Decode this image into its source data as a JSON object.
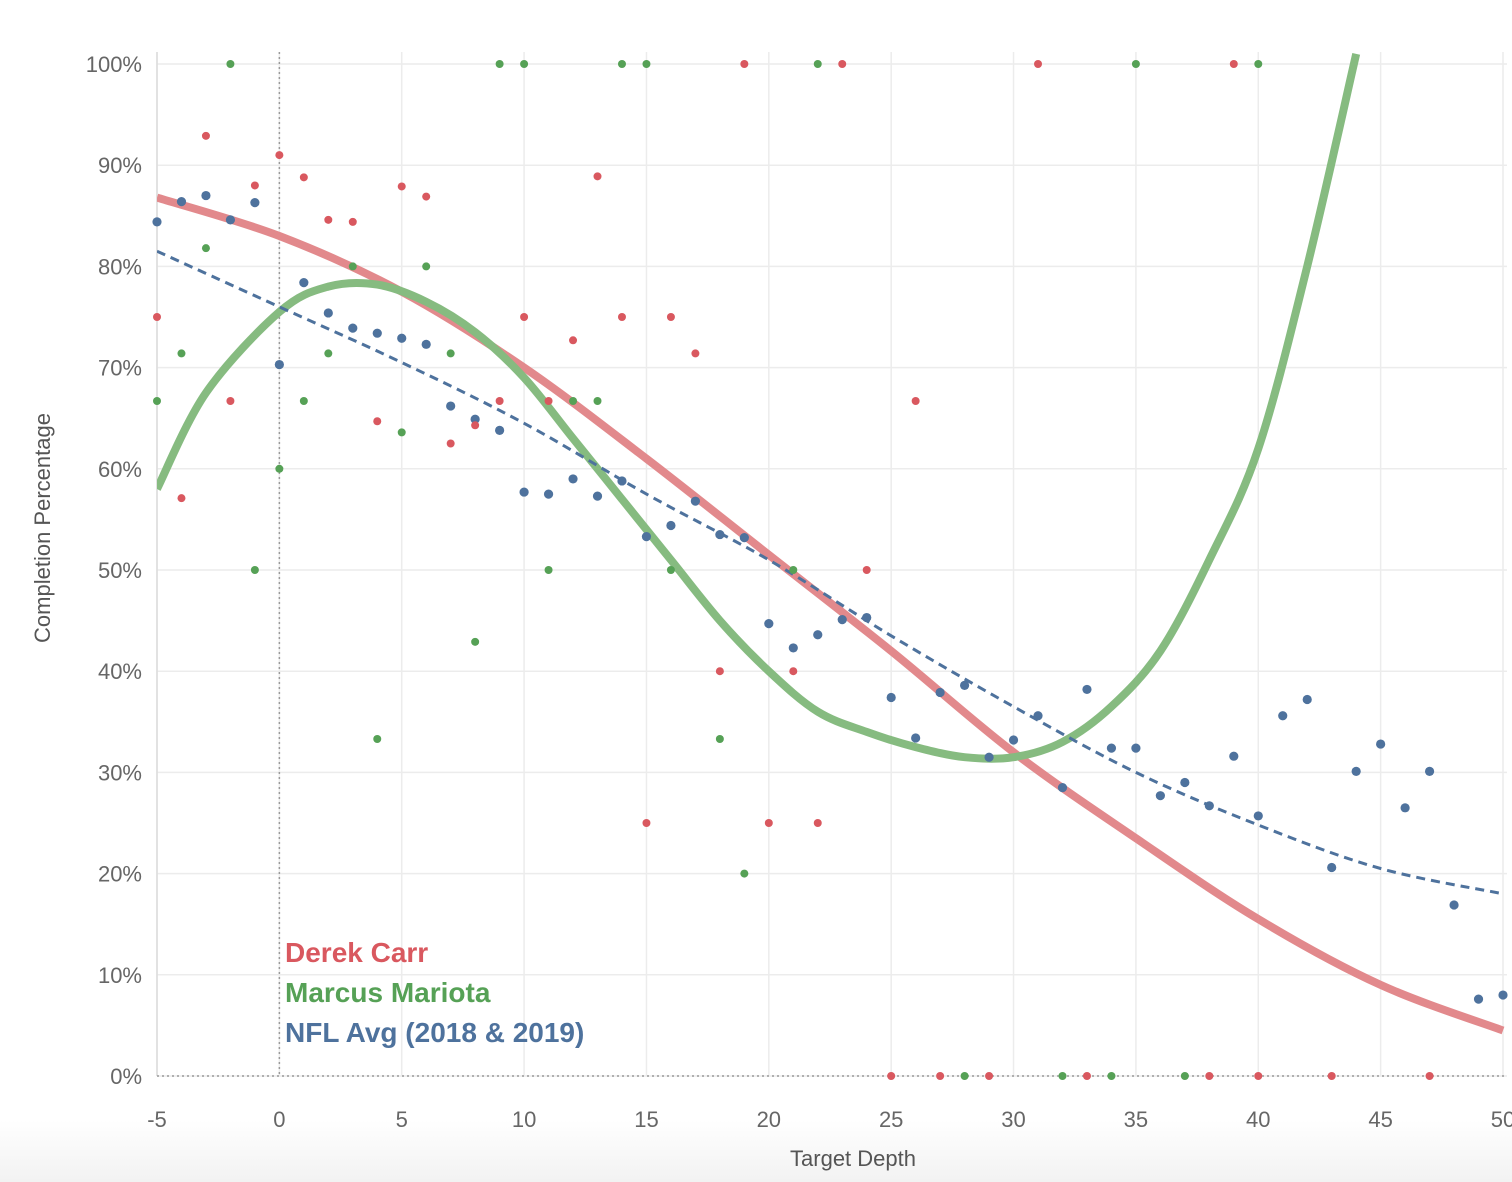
{
  "chart_data": {
    "type": "scatter",
    "xlabel": "Target Depth",
    "ylabel": "Completion Percentage",
    "xlim": [
      -5,
      50
    ],
    "ylim": [
      0,
      100
    ],
    "x_ticks": [
      "-5",
      "0",
      "5",
      "10",
      "15",
      "20",
      "25",
      "30",
      "35",
      "40",
      "45",
      "50"
    ],
    "y_ticks": [
      "0%",
      "10%",
      "20%",
      "30%",
      "40%",
      "50%",
      "60%",
      "70%",
      "80%",
      "90%",
      "100%"
    ],
    "grid": true,
    "reference_line_x": 0,
    "legend_placement": "bottom-left",
    "legend": [
      "Derek Carr",
      "Marcus Mariota",
      "NFL Avg (2018 & 2019)"
    ],
    "series": [
      {
        "name": "Derek Carr",
        "color": "#d9585f",
        "trend_color": "#e2898c",
        "trend": "polynomial",
        "trend_style": "solid-thick",
        "trend_points": [
          [
            -5,
            86.8
          ],
          [
            0,
            83
          ],
          [
            5,
            77.5
          ],
          [
            10,
            70
          ],
          [
            15,
            61
          ],
          [
            20,
            51.5
          ],
          [
            25,
            42
          ],
          [
            30,
            32
          ],
          [
            35,
            23.5
          ],
          [
            40,
            15.5
          ],
          [
            45,
            9
          ],
          [
            50,
            4.5
          ]
        ],
        "points": [
          [
            -5,
            75
          ],
          [
            -4,
            57.1
          ],
          [
            -3,
            92.9
          ],
          [
            -2,
            66.7
          ],
          [
            -1,
            88
          ],
          [
            0,
            91
          ],
          [
            1,
            88.8
          ],
          [
            2,
            84.6
          ],
          [
            3,
            84.4
          ],
          [
            4,
            64.7
          ],
          [
            5,
            87.9
          ],
          [
            6,
            86.9
          ],
          [
            7,
            62.5
          ],
          [
            8,
            64.3
          ],
          [
            9,
            66.7
          ],
          [
            10,
            75
          ],
          [
            11,
            66.7
          ],
          [
            12,
            72.7
          ],
          [
            13,
            88.9
          ],
          [
            14,
            75
          ],
          [
            15,
            25
          ],
          [
            16,
            75
          ],
          [
            17,
            71.4
          ],
          [
            18,
            40
          ],
          [
            19,
            100
          ],
          [
            20,
            25
          ],
          [
            21,
            40
          ],
          [
            22,
            25
          ],
          [
            23,
            100
          ],
          [
            24,
            50
          ],
          [
            25,
            0
          ],
          [
            26,
            66.7
          ],
          [
            27,
            0
          ],
          [
            29,
            0
          ],
          [
            31,
            100
          ],
          [
            33,
            0
          ],
          [
            38,
            0
          ],
          [
            39,
            100
          ],
          [
            40,
            0
          ],
          [
            43,
            0
          ],
          [
            47,
            0
          ]
        ]
      },
      {
        "name": "Marcus Mariota",
        "color": "#56a156",
        "trend_color": "#86bb80",
        "trend": "polynomial",
        "trend_style": "solid-thick",
        "trend_points": [
          [
            -5,
            58
          ],
          [
            -3,
            67.5
          ],
          [
            0,
            75.5
          ],
          [
            2,
            78
          ],
          [
            4,
            78.2
          ],
          [
            6,
            76.5
          ],
          [
            8,
            73.5
          ],
          [
            10,
            69
          ],
          [
            12,
            63
          ],
          [
            14,
            57
          ],
          [
            16,
            51
          ],
          [
            18,
            45
          ],
          [
            20,
            40
          ],
          [
            22,
            36
          ],
          [
            24,
            34
          ],
          [
            26,
            32.5
          ],
          [
            28,
            31.5
          ],
          [
            30,
            31.5
          ],
          [
            32,
            33
          ],
          [
            34,
            36.5
          ],
          [
            36,
            42
          ],
          [
            38,
            51
          ],
          [
            40,
            62
          ],
          [
            42,
            80
          ],
          [
            44,
            101
          ]
        ],
        "points": [
          [
            -5,
            66.7
          ],
          [
            -4,
            71.4
          ],
          [
            -3,
            81.8
          ],
          [
            -2,
            100
          ],
          [
            -1,
            50
          ],
          [
            0,
            60
          ],
          [
            1,
            66.7
          ],
          [
            2,
            71.4
          ],
          [
            3,
            80
          ],
          [
            4,
            33.3
          ],
          [
            5,
            63.6
          ],
          [
            6,
            80
          ],
          [
            7,
            71.4
          ],
          [
            8,
            42.9
          ],
          [
            9,
            100
          ],
          [
            10,
            100
          ],
          [
            11,
            50
          ],
          [
            12,
            66.7
          ],
          [
            13,
            66.7
          ],
          [
            14,
            100
          ],
          [
            15,
            100
          ],
          [
            16,
            50
          ],
          [
            18,
            33.3
          ],
          [
            19,
            20
          ],
          [
            21,
            50
          ],
          [
            22,
            100
          ],
          [
            28,
            0
          ],
          [
            32,
            0
          ],
          [
            34,
            0
          ],
          [
            35,
            100
          ],
          [
            37,
            0
          ],
          [
            40,
            100
          ]
        ]
      },
      {
        "name": "NFL Avg (2018 & 2019)",
        "color": "#4e729d",
        "trend_color": "#4e729d",
        "trend": "polynomial",
        "trend_style": "dashed",
        "trend_points": [
          [
            -5,
            81.5
          ],
          [
            0,
            76
          ],
          [
            5,
            70.5
          ],
          [
            10,
            64.5
          ],
          [
            15,
            57.5
          ],
          [
            20,
            51
          ],
          [
            25,
            43.5
          ],
          [
            30,
            36.5
          ],
          [
            35,
            30
          ],
          [
            40,
            24.8
          ],
          [
            45,
            20.5
          ],
          [
            50,
            18
          ]
        ],
        "points": [
          [
            -5,
            84.4
          ],
          [
            -4,
            86.4
          ],
          [
            -3,
            87
          ],
          [
            -2,
            84.6
          ],
          [
            -1,
            86.3
          ],
          [
            0,
            70.3
          ],
          [
            1,
            78.4
          ],
          [
            2,
            75.4
          ],
          [
            3,
            73.9
          ],
          [
            4,
            73.4
          ],
          [
            5,
            72.9
          ],
          [
            6,
            72.3
          ],
          [
            7,
            66.2
          ],
          [
            8,
            64.9
          ],
          [
            9,
            63.8
          ],
          [
            10,
            57.7
          ],
          [
            11,
            57.5
          ],
          [
            12,
            59
          ],
          [
            13,
            57.3
          ],
          [
            14,
            58.8
          ],
          [
            15,
            53.3
          ],
          [
            16,
            54.4
          ],
          [
            17,
            56.8
          ],
          [
            18,
            53.5
          ],
          [
            19,
            53.2
          ],
          [
            20,
            44.7
          ],
          [
            21,
            42.3
          ],
          [
            22,
            43.6
          ],
          [
            23,
            45.1
          ],
          [
            24,
            45.3
          ],
          [
            25,
            37.4
          ],
          [
            26,
            33.4
          ],
          [
            27,
            37.9
          ],
          [
            28,
            38.6
          ],
          [
            29,
            31.5
          ],
          [
            30,
            33.2
          ],
          [
            31,
            35.6
          ],
          [
            32,
            28.5
          ],
          [
            33,
            38.2
          ],
          [
            34,
            32.4
          ],
          [
            35,
            32.4
          ],
          [
            36,
            27.7
          ],
          [
            37,
            29
          ],
          [
            38,
            26.7
          ],
          [
            39,
            31.6
          ],
          [
            40,
            25.7
          ],
          [
            41,
            35.6
          ],
          [
            42,
            37.2
          ],
          [
            43,
            20.6
          ],
          [
            44,
            30.1
          ],
          [
            45,
            32.8
          ],
          [
            46,
            26.5
          ],
          [
            47,
            30.1
          ],
          [
            48,
            16.9
          ],
          [
            49,
            7.6
          ],
          [
            50,
            8
          ]
        ]
      }
    ]
  }
}
